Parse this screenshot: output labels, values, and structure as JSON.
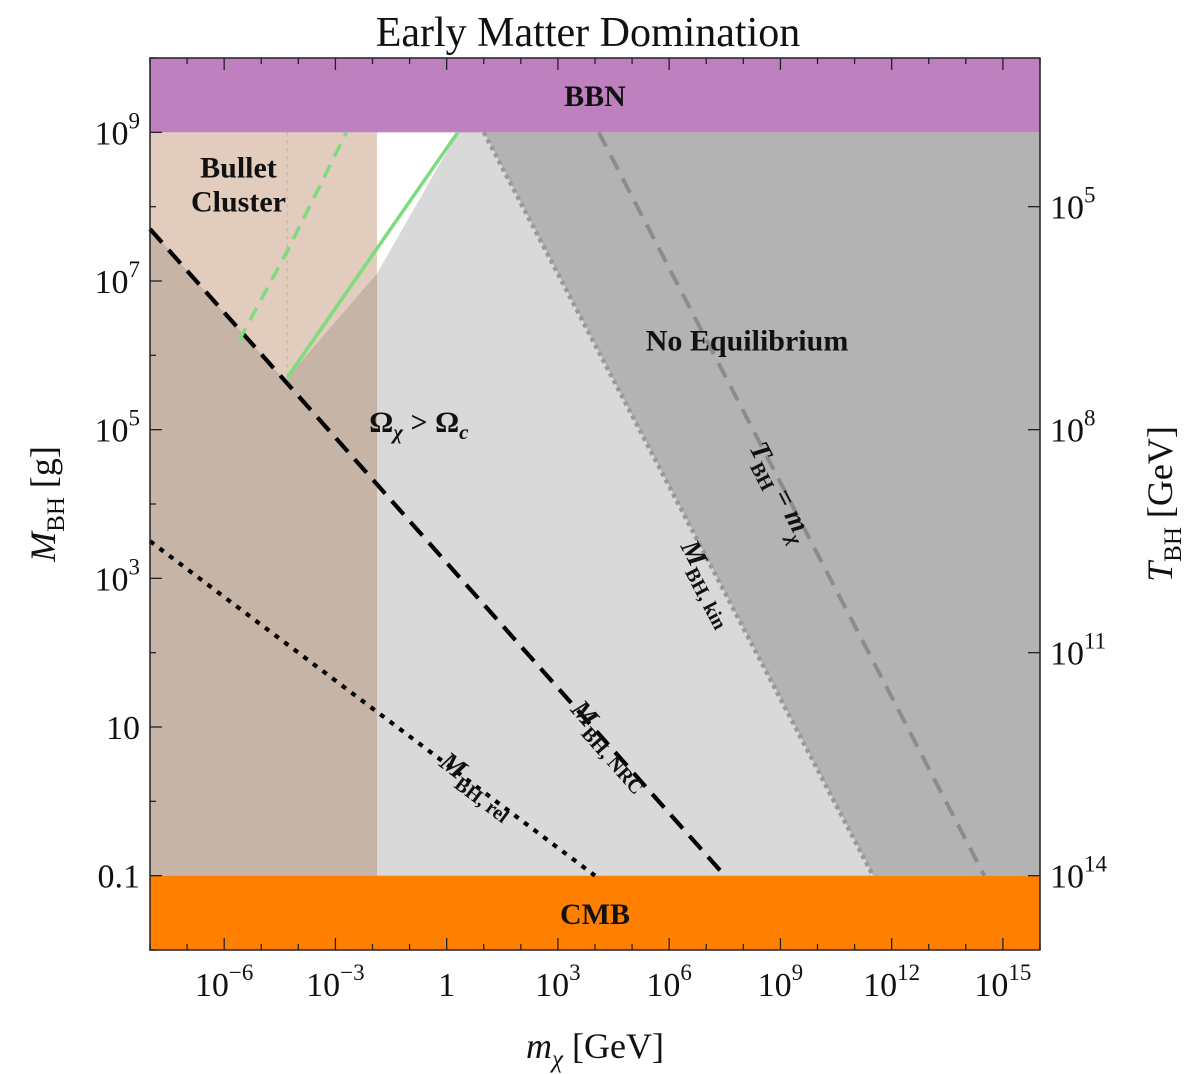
{
  "chart_data": {
    "type": "area",
    "title": "Early Matter Domination",
    "xlabel": {
      "var": "m",
      "sub": "χ",
      "unit": "[GeV]"
    },
    "ylabel": {
      "var": "M",
      "sub": "BH",
      "unit": "[g]"
    },
    "y2label": {
      "var": "T",
      "sub": "BH",
      "unit": "[GeV]"
    },
    "x_scale": "log",
    "y_scale": "log",
    "xlim_log10": [
      -8,
      16
    ],
    "ylim_log10": [
      -2,
      10
    ],
    "x_ticks": [
      {
        "log": -6,
        "base": "10",
        "exp": "−6"
      },
      {
        "log": -3,
        "base": "10",
        "exp": "−3"
      },
      {
        "log": 0,
        "base": "1",
        "exp": ""
      },
      {
        "log": 3,
        "base": "10",
        "exp": "3"
      },
      {
        "log": 6,
        "base": "10",
        "exp": "6"
      },
      {
        "log": 9,
        "base": "10",
        "exp": "9"
      },
      {
        "log": 12,
        "base": "10",
        "exp": "12"
      },
      {
        "log": 15,
        "base": "10",
        "exp": "15"
      }
    ],
    "y_ticks": [
      {
        "log": -1,
        "base": "0.1",
        "exp": ""
      },
      {
        "log": 1,
        "base": "10",
        "exp": ""
      },
      {
        "log": 3,
        "base": "10",
        "exp": "3"
      },
      {
        "log": 5,
        "base": "10",
        "exp": "5"
      },
      {
        "log": 7,
        "base": "10",
        "exp": "7"
      },
      {
        "log": 9,
        "base": "10",
        "exp": "9"
      }
    ],
    "y2_ticks": [
      {
        "ylog": 8.0,
        "base": "10",
        "exp": "5"
      },
      {
        "ylog": 5.0,
        "base": "10",
        "exp": "8"
      },
      {
        "ylog": 2.0,
        "base": "10",
        "exp": "11"
      },
      {
        "ylog": -1.0,
        "base": "10",
        "exp": "14"
      }
    ],
    "regions": [
      {
        "name": "BBN",
        "label": "BBN",
        "color": "#bf80bf",
        "y_log_range": [
          9,
          10
        ]
      },
      {
        "name": "CMB",
        "label": "CMB",
        "color": "#ff8000",
        "y_log_range": [
          -2,
          -1
        ]
      },
      {
        "name": "Bullet Cluster",
        "label_lines": [
          "Bullet",
          "Cluster"
        ],
        "color": "#e2ccbd",
        "x_log_range": [
          -8,
          -1.88
        ]
      },
      {
        "name": "Omega",
        "label": "Ω_χ > Ω_c",
        "color": "#d9d9d9"
      },
      {
        "name": "No Equilibrium",
        "label": "No Equilibrium",
        "color": "#b3b3b3"
      }
    ],
    "curves": [
      {
        "name": "M_BH,NRC",
        "label_main": "M",
        "label_sub": "BH, NRC",
        "style": "dashed",
        "color": "#000000",
        "points": [
          [
            -8,
            7.7
          ],
          [
            7.5,
            -1
          ]
        ]
      },
      {
        "name": "M_BH,rel",
        "label_main": "M",
        "label_sub": "BH, rel",
        "style": "dotted",
        "color": "#000000",
        "points": [
          [
            -8,
            3.5
          ],
          [
            4.0,
            -1
          ]
        ]
      },
      {
        "name": "M_BH,kin",
        "label_main": "M",
        "label_sub": "BH, kin",
        "style": "dotted",
        "color": "#999999",
        "points": [
          [
            1.0,
            9.0
          ],
          [
            11.5,
            -1
          ]
        ]
      },
      {
        "name": "T_BH = m_χ",
        "label_main": "T",
        "label_sub": "BH",
        "label_suffix": " = m",
        "label_suffix_sub": "χ",
        "style": "dashed",
        "color": "#8c8c8c",
        "points": [
          [
            4.1,
            9.0
          ],
          [
            14.5,
            -1
          ]
        ]
      },
      {
        "name": "green-solid",
        "style": "solid",
        "color": "#7ddc7d",
        "points": [
          [
            -4.3,
            5.7
          ],
          [
            0.3,
            9.0
          ]
        ]
      },
      {
        "name": "green-dashed",
        "style": "dashed",
        "color": "#7ddc7d",
        "points": [
          [
            -5.6,
            6.2
          ],
          [
            -4.3,
            7.4
          ],
          [
            -2.7,
            9.0
          ]
        ]
      }
    ]
  }
}
